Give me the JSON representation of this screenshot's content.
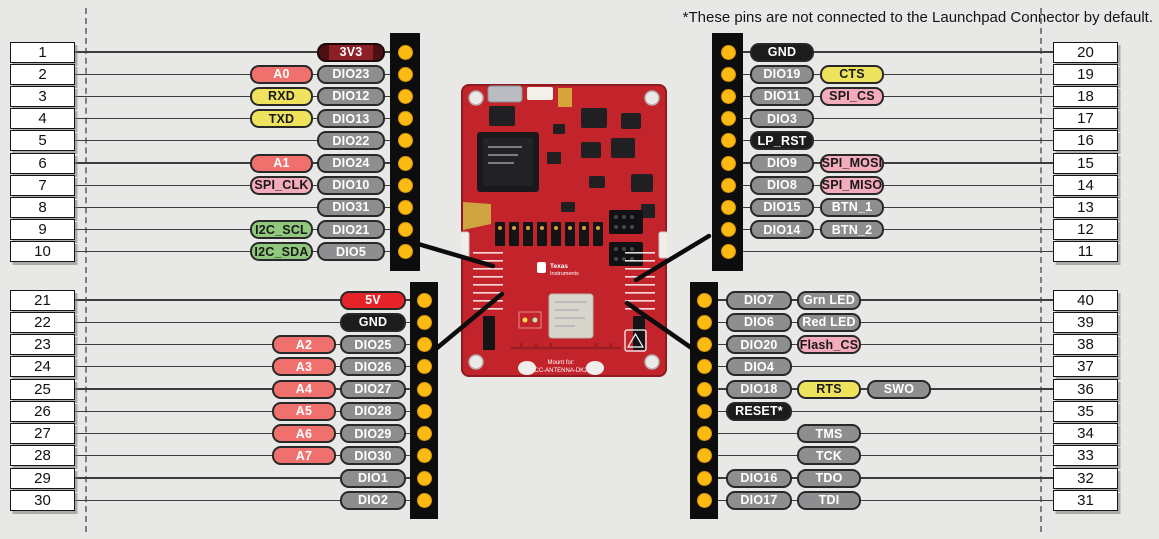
{
  "note": "*These pins are not connected to the Launchpad Connector by default.",
  "palette": {
    "gray": "#8e8e91",
    "red": "#f0706d",
    "yellow": "#efe35e",
    "pink": "#f4abbc",
    "green": "#90c97e",
    "black": "#1c1c1c",
    "power_red": "#e52329",
    "dark_red": "#8c2026",
    "pad_gold": "#fcba12",
    "header_black": "#0d0d0d",
    "board_red": "#c3242b"
  },
  "board": {
    "brand_line1": "Texas",
    "brand_line2": "Instruments",
    "mount_line1": "Mount for:",
    "mount_line2": "CC-ANTENNA-DK2"
  },
  "quadrants": {
    "top_left": {
      "pins": [
        {
          "pin": "1",
          "badges": [
            {
              "col": "dio",
              "label": "3V3",
              "color": "darkred"
            }
          ]
        },
        {
          "pin": "2",
          "badges": [
            {
              "col": "fn",
              "label": "A0",
              "color": "red"
            },
            {
              "col": "dio",
              "label": "DIO23",
              "color": "gray"
            }
          ]
        },
        {
          "pin": "3",
          "badges": [
            {
              "col": "fn",
              "label": "RXD",
              "color": "yellow"
            },
            {
              "col": "dio",
              "label": "DIO12",
              "color": "gray"
            }
          ]
        },
        {
          "pin": "4",
          "badges": [
            {
              "col": "fn",
              "label": "TXD",
              "color": "yellow"
            },
            {
              "col": "dio",
              "label": "DIO13",
              "color": "gray"
            }
          ]
        },
        {
          "pin": "5",
          "badges": [
            {
              "col": "dio",
              "label": "DIO22",
              "color": "gray"
            }
          ]
        },
        {
          "pin": "6",
          "badges": [
            {
              "col": "fn",
              "label": "A1",
              "color": "red"
            },
            {
              "col": "dio",
              "label": "DIO24",
              "color": "gray"
            }
          ]
        },
        {
          "pin": "7",
          "badges": [
            {
              "col": "fn",
              "label": "SPI_CLK",
              "color": "pink"
            },
            {
              "col": "dio",
              "label": "DIO10",
              "color": "gray"
            }
          ]
        },
        {
          "pin": "8",
          "badges": [
            {
              "col": "dio",
              "label": "DIO31",
              "color": "gray"
            }
          ]
        },
        {
          "pin": "9",
          "badges": [
            {
              "col": "fn",
              "label": "I2C_SCL",
              "color": "green"
            },
            {
              "col": "dio",
              "label": "DIO21",
              "color": "gray"
            }
          ]
        },
        {
          "pin": "10",
          "badges": [
            {
              "col": "fn",
              "label": "I2C_SDA",
              "color": "green"
            },
            {
              "col": "dio",
              "label": "DIO5",
              "color": "gray"
            }
          ]
        }
      ]
    },
    "top_right": {
      "pins": [
        {
          "pin": "20",
          "badges": [
            {
              "col": "dio",
              "label": "GND",
              "color": "black"
            }
          ]
        },
        {
          "pin": "19",
          "badges": [
            {
              "col": "dio",
              "label": "DIO19",
              "color": "gray"
            },
            {
              "col": "fn",
              "label": "CTS",
              "color": "yellow"
            }
          ]
        },
        {
          "pin": "18",
          "badges": [
            {
              "col": "dio",
              "label": "DIO11",
              "color": "gray"
            },
            {
              "col": "fn",
              "label": "SPI_CS",
              "color": "pink"
            }
          ]
        },
        {
          "pin": "17",
          "badges": [
            {
              "col": "dio",
              "label": "DIO3",
              "color": "gray"
            }
          ]
        },
        {
          "pin": "16",
          "badges": [
            {
              "col": "dio",
              "label": "LP_RST",
              "color": "black"
            }
          ]
        },
        {
          "pin": "15",
          "badges": [
            {
              "col": "dio",
              "label": "DIO9",
              "color": "gray"
            },
            {
              "col": "fn",
              "label": "SPI_MOSI",
              "color": "pink"
            }
          ]
        },
        {
          "pin": "14",
          "badges": [
            {
              "col": "dio",
              "label": "DIO8",
              "color": "gray"
            },
            {
              "col": "fn",
              "label": "SPI_MISO",
              "color": "pink"
            }
          ]
        },
        {
          "pin": "13",
          "badges": [
            {
              "col": "dio",
              "label": "DIO15",
              "color": "gray"
            },
            {
              "col": "fn",
              "label": "BTN_1",
              "color": "gray"
            }
          ]
        },
        {
          "pin": "12",
          "badges": [
            {
              "col": "dio",
              "label": "DIO14",
              "color": "gray"
            },
            {
              "col": "fn",
              "label": "BTN_2",
              "color": "gray"
            }
          ]
        },
        {
          "pin": "11",
          "badges": []
        }
      ]
    },
    "bottom_left": {
      "pins": [
        {
          "pin": "21",
          "badges": [
            {
              "col": "dio",
              "label": "5V",
              "color": "power"
            }
          ]
        },
        {
          "pin": "22",
          "badges": [
            {
              "col": "dio",
              "label": "GND",
              "color": "black"
            }
          ]
        },
        {
          "pin": "23",
          "badges": [
            {
              "col": "fn",
              "label": "A2",
              "color": "red"
            },
            {
              "col": "dio",
              "label": "DIO25",
              "color": "gray"
            }
          ]
        },
        {
          "pin": "24",
          "badges": [
            {
              "col": "fn",
              "label": "A3",
              "color": "red"
            },
            {
              "col": "dio",
              "label": "DIO26",
              "color": "gray"
            }
          ]
        },
        {
          "pin": "25",
          "badges": [
            {
              "col": "fn",
              "label": "A4",
              "color": "red"
            },
            {
              "col": "dio",
              "label": "DIO27",
              "color": "gray"
            }
          ]
        },
        {
          "pin": "26",
          "badges": [
            {
              "col": "fn",
              "label": "A5",
              "color": "red"
            },
            {
              "col": "dio",
              "label": "DIO28",
              "color": "gray"
            }
          ]
        },
        {
          "pin": "27",
          "badges": [
            {
              "col": "fn",
              "label": "A6",
              "color": "red"
            },
            {
              "col": "dio",
              "label": "DIO29",
              "color": "gray"
            }
          ]
        },
        {
          "pin": "28",
          "badges": [
            {
              "col": "fn",
              "label": "A7",
              "color": "red"
            },
            {
              "col": "dio",
              "label": "DIO30",
              "color": "gray"
            }
          ]
        },
        {
          "pin": "29",
          "badges": [
            {
              "col": "dio",
              "label": "DIO1",
              "color": "gray"
            }
          ]
        },
        {
          "pin": "30",
          "badges": [
            {
              "col": "dio",
              "label": "DIO2",
              "color": "gray"
            }
          ]
        }
      ]
    },
    "bottom_right": {
      "pins": [
        {
          "pin": "40",
          "badges": [
            {
              "col": "dio",
              "label": "DIO7",
              "color": "gray"
            },
            {
              "col": "fn",
              "label": "Grn LED",
              "color": "gray"
            }
          ]
        },
        {
          "pin": "39",
          "badges": [
            {
              "col": "dio",
              "label": "DIO6",
              "color": "gray"
            },
            {
              "col": "fn",
              "label": "Red LED",
              "color": "gray"
            }
          ]
        },
        {
          "pin": "38",
          "badges": [
            {
              "col": "dio",
              "label": "DIO20",
              "color": "gray"
            },
            {
              "col": "fn",
              "label": "Flash_CS",
              "color": "pink"
            }
          ]
        },
        {
          "pin": "37",
          "badges": [
            {
              "col": "dio",
              "label": "DIO4",
              "color": "gray"
            }
          ]
        },
        {
          "pin": "36",
          "badges": [
            {
              "col": "dio",
              "label": "DIO18",
              "color": "gray"
            },
            {
              "col": "fn",
              "label": "RTS",
              "color": "yellow"
            },
            {
              "col": "fn2",
              "label": "SWO",
              "color": "gray"
            }
          ]
        },
        {
          "pin": "35",
          "badges": [
            {
              "col": "dio",
              "label": "RESET*",
              "color": "black"
            }
          ]
        },
        {
          "pin": "34",
          "badges": [
            {
              "col": "fn",
              "label": "TMS",
              "color": "gray"
            }
          ]
        },
        {
          "pin": "33",
          "badges": [
            {
              "col": "fn",
              "label": "TCK",
              "color": "gray"
            }
          ]
        },
        {
          "pin": "32",
          "badges": [
            {
              "col": "dio",
              "label": "DIO16",
              "color": "gray"
            },
            {
              "col": "fn",
              "label": "TDO",
              "color": "gray"
            }
          ]
        },
        {
          "pin": "31",
          "badges": [
            {
              "col": "dio",
              "label": "DIO17",
              "color": "gray"
            },
            {
              "col": "fn",
              "label": "TDI",
              "color": "gray"
            }
          ]
        }
      ]
    }
  }
}
